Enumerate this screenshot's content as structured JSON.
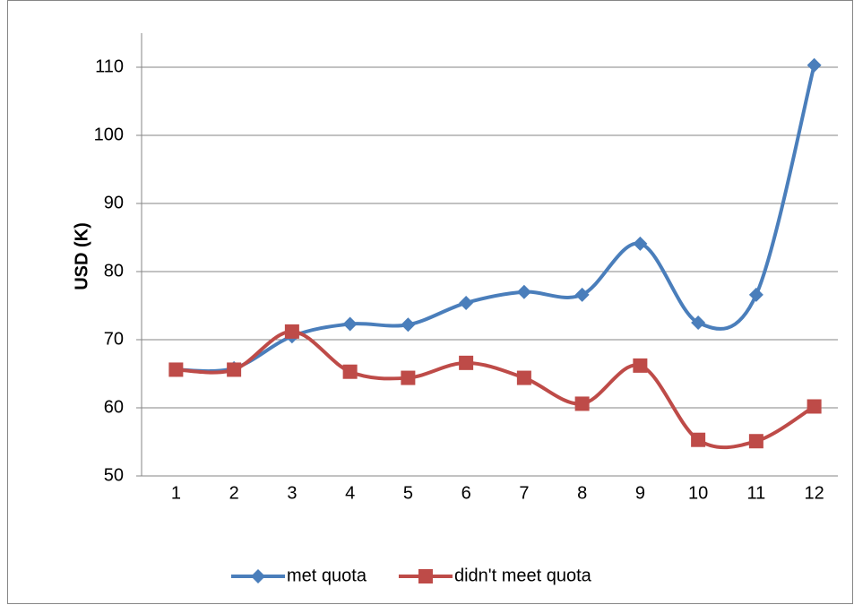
{
  "chart_data": {
    "type": "line",
    "y_label": "USD (K)",
    "categories": [
      "1",
      "2",
      "3",
      "4",
      "5",
      "6",
      "7",
      "8",
      "9",
      "10",
      "11",
      "12"
    ],
    "series": [
      {
        "name": "met quota",
        "color": "#4a7ebb",
        "marker": "diamond",
        "values": [
          65.6,
          65.8,
          70.5,
          72.3,
          72.2,
          75.4,
          77.0,
          76.6,
          84.1,
          72.5,
          76.6,
          110.3
        ]
      },
      {
        "name": "didn't meet quota",
        "color": "#be4b48",
        "marker": "square",
        "values": [
          65.6,
          65.6,
          71.2,
          65.3,
          64.4,
          66.6,
          64.4,
          60.6,
          66.2,
          55.3,
          55.1,
          60.2
        ]
      }
    ],
    "ylim": [
      50,
      115
    ],
    "yticks": [
      50,
      60,
      70,
      80,
      90,
      100,
      110
    ],
    "grid": true,
    "smooth": true,
    "legend": "bottom"
  }
}
